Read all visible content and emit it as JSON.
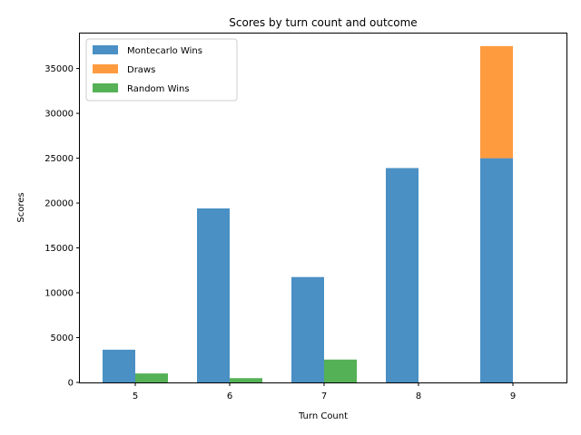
{
  "chart_data": {
    "type": "bar",
    "title": "Scores by turn count and outcome",
    "xlabel": "Turn Count",
    "ylabel": "Scores",
    "categories": [
      "5",
      "6",
      "7",
      "8",
      "9"
    ],
    "ylim": [
      0,
      38900
    ],
    "yticks": [
      0,
      5000,
      10000,
      15000,
      20000,
      25000,
      30000,
      35000
    ],
    "ytick_labels": [
      "0",
      "5000",
      "10000",
      "15000",
      "20000",
      "25000",
      "30000",
      "35000"
    ],
    "legend_position": "top-left",
    "grid": false,
    "series": [
      {
        "name": "Montecarlo Wins",
        "values": [
          3650,
          19400,
          11750,
          23900,
          25000
        ],
        "color": "#4a90c4",
        "group": "left"
      },
      {
        "name": "Draws",
        "values": [
          0,
          0,
          0,
          0,
          12500
        ],
        "color": "#ff9b3f",
        "group": "left",
        "stacked_on": "Montecarlo Wins"
      },
      {
        "name": "Random Wins",
        "values": [
          1000,
          480,
          2550,
          0,
          0
        ],
        "color": "#55b155",
        "group": "right"
      }
    ]
  }
}
